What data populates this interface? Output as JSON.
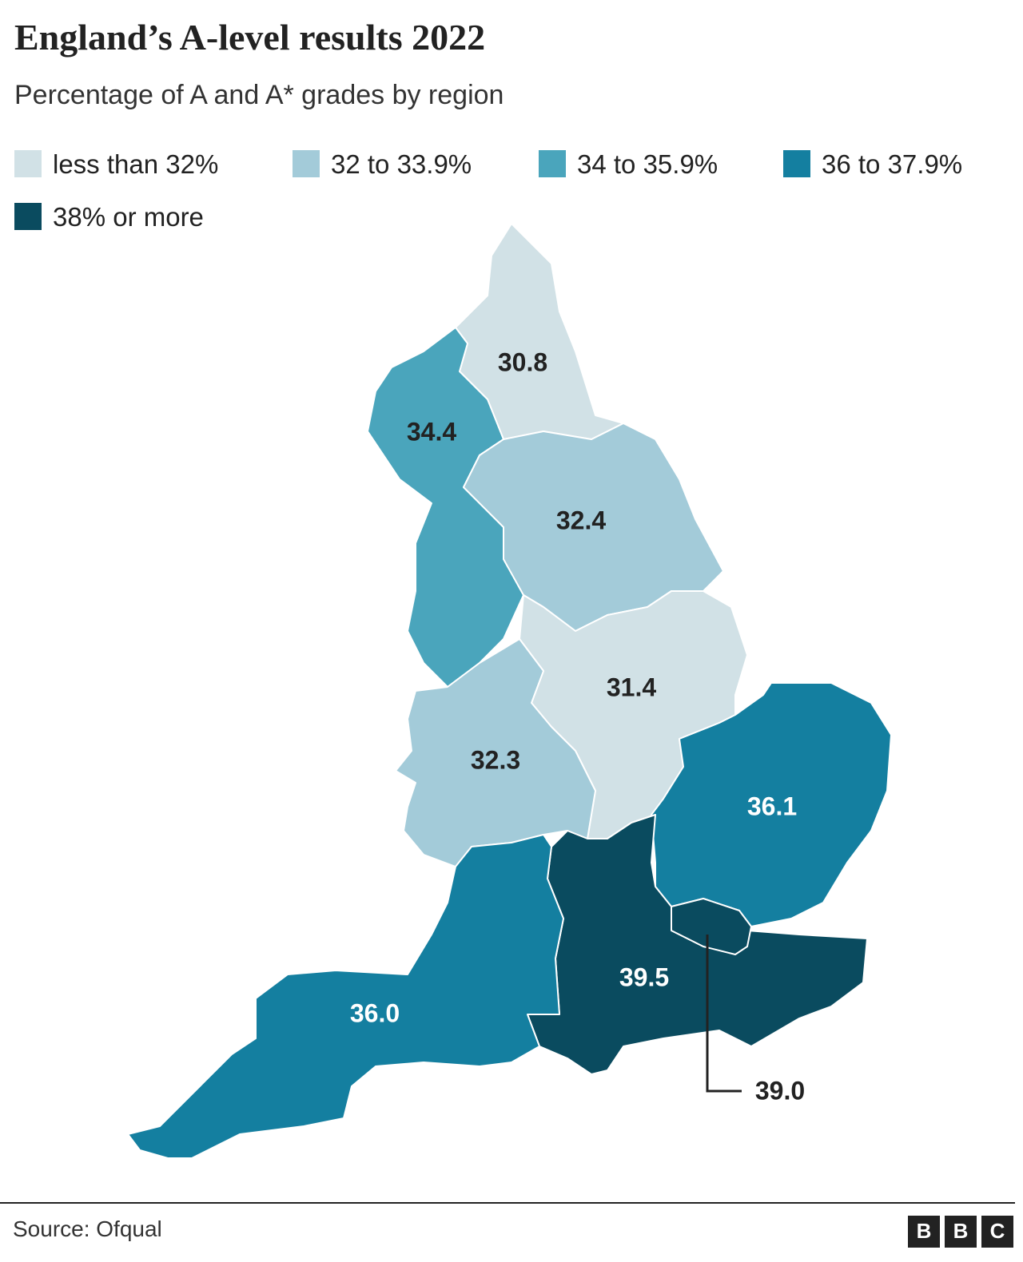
{
  "header": {
    "title": "England’s A-level results 2022",
    "subtitle": "Percentage of A and A* grades by region"
  },
  "legend": {
    "items": [
      {
        "label": "less than 32%",
        "color": "#d1e1e6"
      },
      {
        "label": "32 to 33.9%",
        "color": "#a3cbd9"
      },
      {
        "label": "34 to 35.9%",
        "color": "#4aa5bc"
      },
      {
        "label": "36 to 37.9%",
        "color": "#147fa0"
      },
      {
        "label": "38% or more",
        "color": "#0a4b5f"
      }
    ]
  },
  "regions": [
    {
      "label": "30.8",
      "color": "#d1e1e6"
    },
    {
      "label": "34.4",
      "color": "#4aa5bc"
    },
    {
      "label": "32.4",
      "color": "#a3cbd9"
    },
    {
      "label": "31.4",
      "color": "#d1e1e6"
    },
    {
      "label": "32.3",
      "color": "#a3cbd9"
    },
    {
      "label": "36.1",
      "color": "#147fa0"
    },
    {
      "label": "39.5",
      "color": "#0a4b5f"
    },
    {
      "label": "36.0",
      "color": "#147fa0"
    },
    {
      "label": "39.0",
      "color": "#0a4b5f"
    }
  ],
  "footer": {
    "source": "Source: Ofqual",
    "logo": [
      "B",
      "B",
      "C"
    ]
  }
}
